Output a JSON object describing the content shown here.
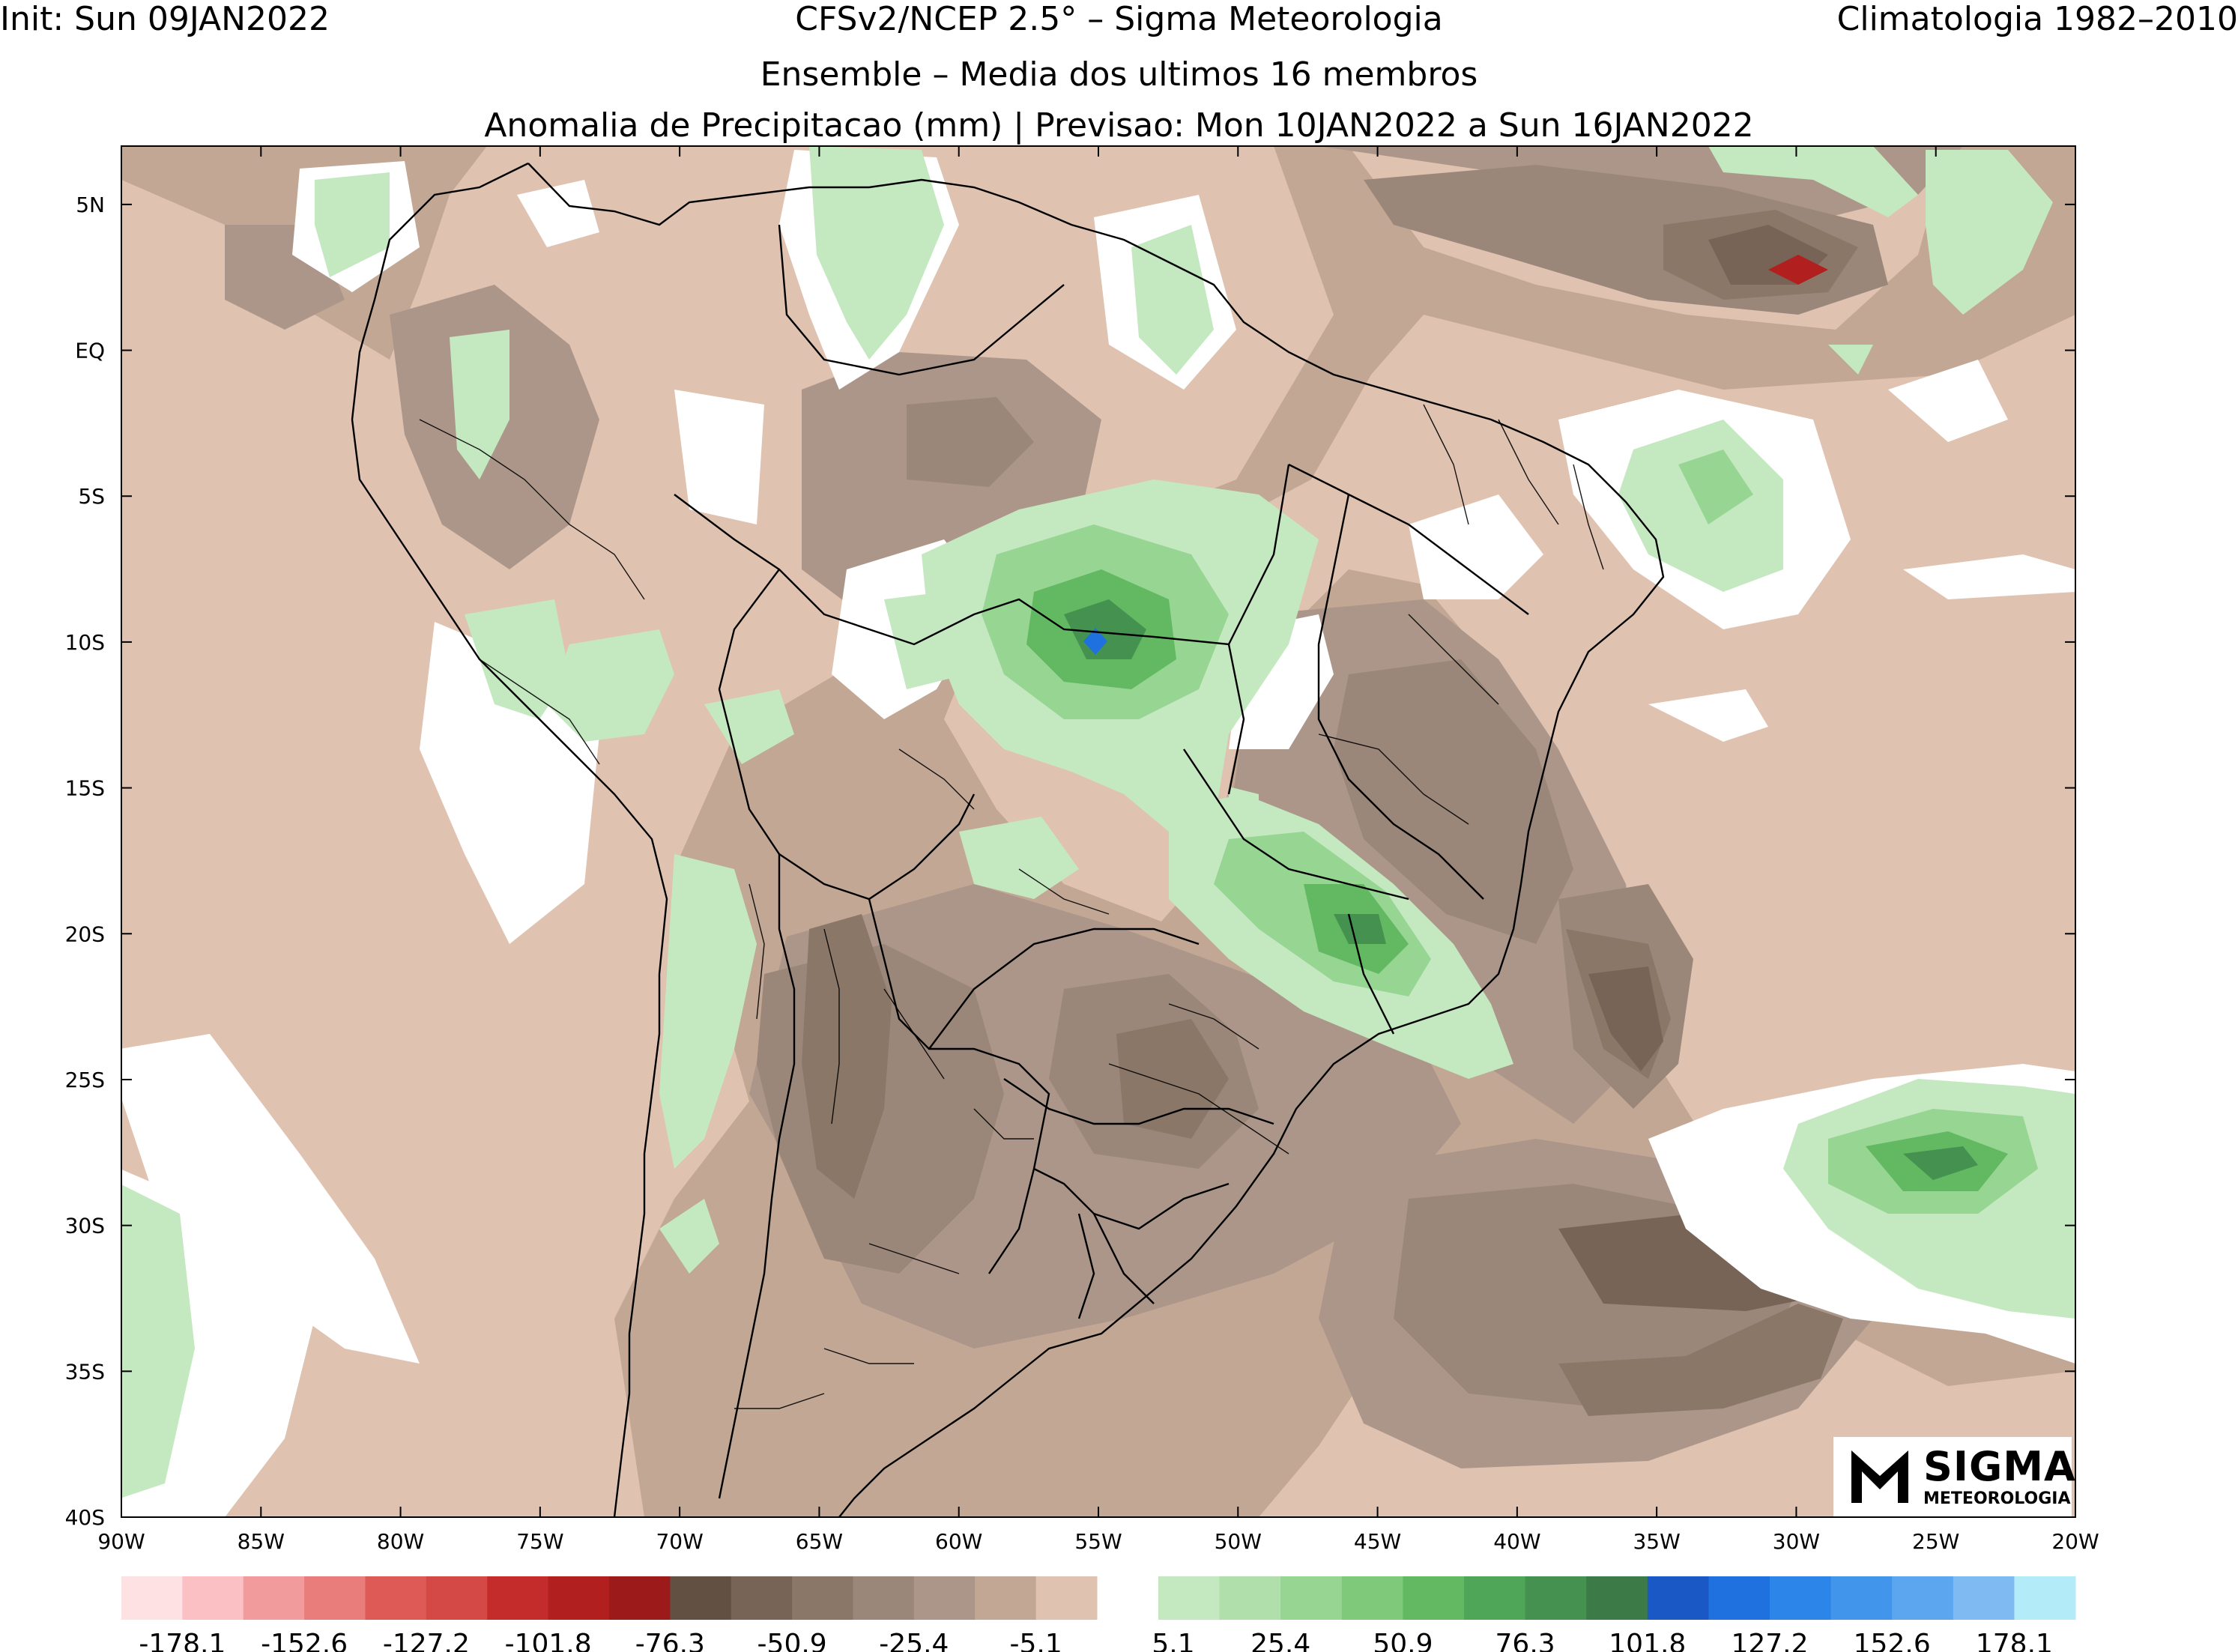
{
  "header": {
    "init": "Init: Sun 09JAN2022",
    "model": "CFSv2/NCEP 2.5° – Sigma Meteorologia",
    "climatology": "Climatologia 1982–2010",
    "ensemble": "Ensemble – Media dos ultimos 16 membros",
    "variable": "Anomalia de Precipitacao (mm) | Previsao: Mon 10JAN2022 a Sun 16JAN2022"
  },
  "axes": {
    "y_ticks": [
      "5N",
      "EQ",
      "5S",
      "10S",
      "15S",
      "20S",
      "25S",
      "30S",
      "35S",
      "40S"
    ],
    "x_ticks": [
      "90W",
      "85W",
      "80W",
      "75W",
      "70W",
      "65W",
      "60W",
      "55W",
      "50W",
      "45W",
      "40W",
      "35W",
      "30W",
      "25W",
      "20W"
    ],
    "lon_range": [
      -90,
      -20
    ],
    "lat_range": [
      -40,
      7
    ]
  },
  "colorbar": {
    "negative_labels": [
      "-178.1",
      "-152.6",
      "-127.2",
      "-101.8",
      "-76.3",
      "-50.9",
      "-25.4",
      "-5.1"
    ],
    "positive_labels": [
      "5.1",
      "25.4",
      "50.9",
      "76.3",
      "101.8",
      "127.2",
      "152.6",
      "178.1"
    ],
    "negative_colors": [
      "#fde1e3",
      "#fbc0c3",
      "#f19b9c",
      "#e87d7b",
      "#de5a57",
      "#d44846",
      "#c32c2b",
      "#b21f1f",
      "#9c1a1a",
      "#625043",
      "#776456",
      "#8a7768",
      "#9b877a",
      "#ac968a",
      "#c2a794",
      "#e0c2b0"
    ],
    "positive_colors": [
      "#c4e8c0",
      "#b1dfab",
      "#97d592",
      "#7fca7a",
      "#62b962",
      "#4fa658",
      "#449150",
      "#3c7b47",
      "#1a58c5",
      "#1f71df",
      "#2c86ea",
      "#4196ec",
      "#5ba6ef",
      "#7fbaf2",
      "#b4ebf8"
    ]
  },
  "logo": {
    "name": "SIGMA",
    "sub": "METEOROLOGIA"
  }
}
